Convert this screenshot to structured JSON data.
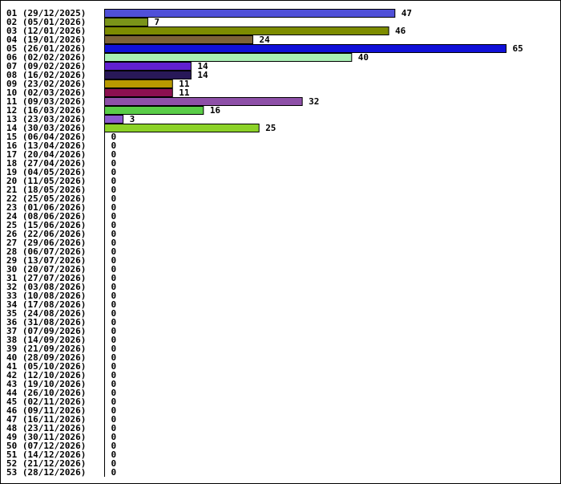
{
  "chart_data": {
    "type": "bar",
    "orientation": "horizontal",
    "categories": [
      "01 (29/12/2025)",
      "02 (05/01/2026)",
      "03 (12/01/2026)",
      "04 (19/01/2026)",
      "05 (26/01/2026)",
      "06 (02/02/2026)",
      "07 (09/02/2026)",
      "08 (16/02/2026)",
      "09 (23/02/2026)",
      "10 (02/03/2026)",
      "11 (09/03/2026)",
      "12 (16/03/2026)",
      "13 (23/03/2026)",
      "14 (30/03/2026)",
      "15 (06/04/2026)",
      "16 (13/04/2026)",
      "17 (20/04/2026)",
      "18 (27/04/2026)",
      "19 (04/05/2026)",
      "20 (11/05/2026)",
      "21 (18/05/2026)",
      "22 (25/05/2026)",
      "23 (01/06/2026)",
      "24 (08/06/2026)",
      "25 (15/06/2026)",
      "26 (22/06/2026)",
      "27 (29/06/2026)",
      "28 (06/07/2026)",
      "29 (13/07/2026)",
      "30 (20/07/2026)",
      "31 (27/07/2026)",
      "32 (03/08/2026)",
      "33 (10/08/2026)",
      "34 (17/08/2026)",
      "35 (24/08/2026)",
      "36 (31/08/2026)",
      "37 (07/09/2026)",
      "38 (14/09/2026)",
      "39 (21/09/2026)",
      "40 (28/09/2026)",
      "41 (05/10/2026)",
      "42 (12/10/2026)",
      "43 (19/10/2026)",
      "44 (26/10/2026)",
      "45 (02/11/2026)",
      "46 (09/11/2026)",
      "47 (16/11/2026)",
      "48 (23/11/2026)",
      "49 (30/11/2026)",
      "50 (07/12/2026)",
      "51 (14/12/2026)",
      "52 (21/12/2026)",
      "53 (28/12/2026)"
    ],
    "values": [
      47,
      7,
      46,
      24,
      65,
      40,
      14,
      14,
      11,
      11,
      32,
      16,
      3,
      25,
      0,
      0,
      0,
      0,
      0,
      0,
      0,
      0,
      0,
      0,
      0,
      0,
      0,
      0,
      0,
      0,
      0,
      0,
      0,
      0,
      0,
      0,
      0,
      0,
      0,
      0,
      0,
      0,
      0,
      0,
      0,
      0,
      0,
      0,
      0,
      0,
      0,
      0,
      0
    ],
    "colors": [
      "#5050d8",
      "#7a9419",
      "#7d8c00",
      "#7c6338",
      "#1010d8",
      "#a8f0b4",
      "#6020d0",
      "#281858",
      "#b89a00",
      "#8c1050",
      "#8e50a8",
      "#5acd48",
      "#8c5ad0",
      "#8cd228"
    ],
    "value_labels": true,
    "xlim": [
      0,
      65
    ],
    "grid": false,
    "legend": "none",
    "title": "",
    "xlabel": "",
    "ylabel": ""
  }
}
